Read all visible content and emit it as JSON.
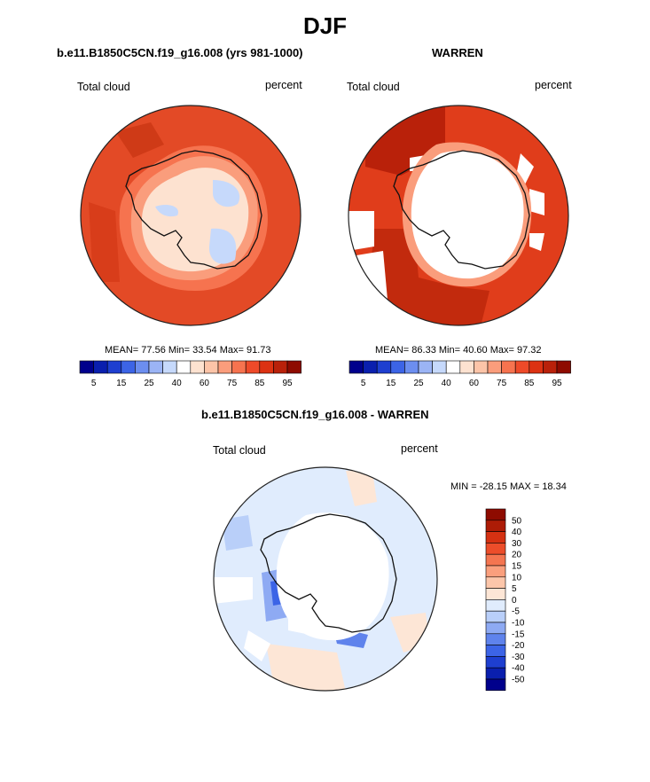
{
  "figure": {
    "title": "DJF",
    "colors": {
      "land_line": "#111111",
      "circle_edge": "#222222",
      "missing": "#ffffff"
    }
  },
  "panels": [
    {
      "id": "model",
      "title": "b.e11.B1850C5CN.f19_g16.008 (yrs 981-1000)",
      "left_label": "Total cloud",
      "right_label": "percent",
      "mean_label": "MEAN=",
      "mean": "77.56",
      "min_label": "Min=",
      "min": "33.54",
      "max_label": "Max=",
      "max": "91.73"
    },
    {
      "id": "obs",
      "title": "WARREN",
      "left_label": "Total cloud",
      "right_label": "percent",
      "mean_label": "MEAN=",
      "mean": "86.33",
      "min_label": "Min=",
      "min": "40.60",
      "max_label": "Max=",
      "max": "97.32"
    },
    {
      "id": "diff",
      "title": "b.e11.B1850C5CN.f19_g16.008 - WARREN",
      "left_label": "Total cloud",
      "right_label": "percent",
      "stats_text": "MIN = -28.15 MAX =  18.34"
    }
  ],
  "abs_colorbar": {
    "colors": [
      "#00008c",
      "#0a1fae",
      "#1e3fd0",
      "#3c64e6",
      "#6c8eef",
      "#9bb4f5",
      "#c6d9fb",
      "#ffffff",
      "#fde2d0",
      "#fcc4a8",
      "#fa9d7c",
      "#f6734f",
      "#ee4a29",
      "#dc3212",
      "#b9210a",
      "#8e0b00"
    ],
    "tick_labels": [
      "5",
      "15",
      "25",
      "40",
      "60",
      "75",
      "85",
      "95"
    ]
  },
  "diff_colorbar": {
    "colors": [
      "#00008c",
      "#0a1fae",
      "#1e3fd0",
      "#3c64e6",
      "#5f83ec",
      "#8eaaf3",
      "#b9cff9",
      "#e0ecfd",
      "#fde6d6",
      "#fcc6aa",
      "#fa9f7d",
      "#f47550",
      "#ec4d2a",
      "#d53112",
      "#ad1c06",
      "#8e0b00"
    ],
    "tick_labels": [
      "50",
      "40",
      "30",
      "20",
      "15",
      "10",
      "5",
      "0",
      "-5",
      "-10",
      "-15",
      "-20",
      "-30",
      "-40",
      "-50"
    ]
  },
  "chart_data": [
    {
      "type": "heatmap",
      "projection": "south-polar-stereographic",
      "title": "b.e11.B1850C5CN.f19_g16.008 (yrs 981-1000)",
      "variable": "Total cloud",
      "units": "percent",
      "mean": 77.56,
      "min": 33.54,
      "max": 91.73,
      "levels": [
        5,
        10,
        15,
        20,
        25,
        30,
        40,
        50,
        60,
        70,
        75,
        80,
        85,
        90,
        95
      ]
    },
    {
      "type": "heatmap",
      "projection": "south-polar-stereographic",
      "title": "WARREN",
      "variable": "Total cloud",
      "units": "percent",
      "mean": 86.33,
      "min": 40.6,
      "max": 97.32,
      "levels": [
        5,
        10,
        15,
        20,
        25,
        30,
        40,
        50,
        60,
        70,
        75,
        80,
        85,
        90,
        95
      ]
    },
    {
      "type": "heatmap",
      "projection": "south-polar-stereographic",
      "title": "b.e11.B1850C5CN.f19_g16.008 - WARREN",
      "variable": "Total cloud",
      "units": "percent",
      "min": -28.15,
      "max": 18.34,
      "levels": [
        -50,
        -40,
        -30,
        -20,
        -15,
        -10,
        -5,
        0,
        5,
        10,
        15,
        20,
        30,
        40,
        50
      ]
    }
  ]
}
